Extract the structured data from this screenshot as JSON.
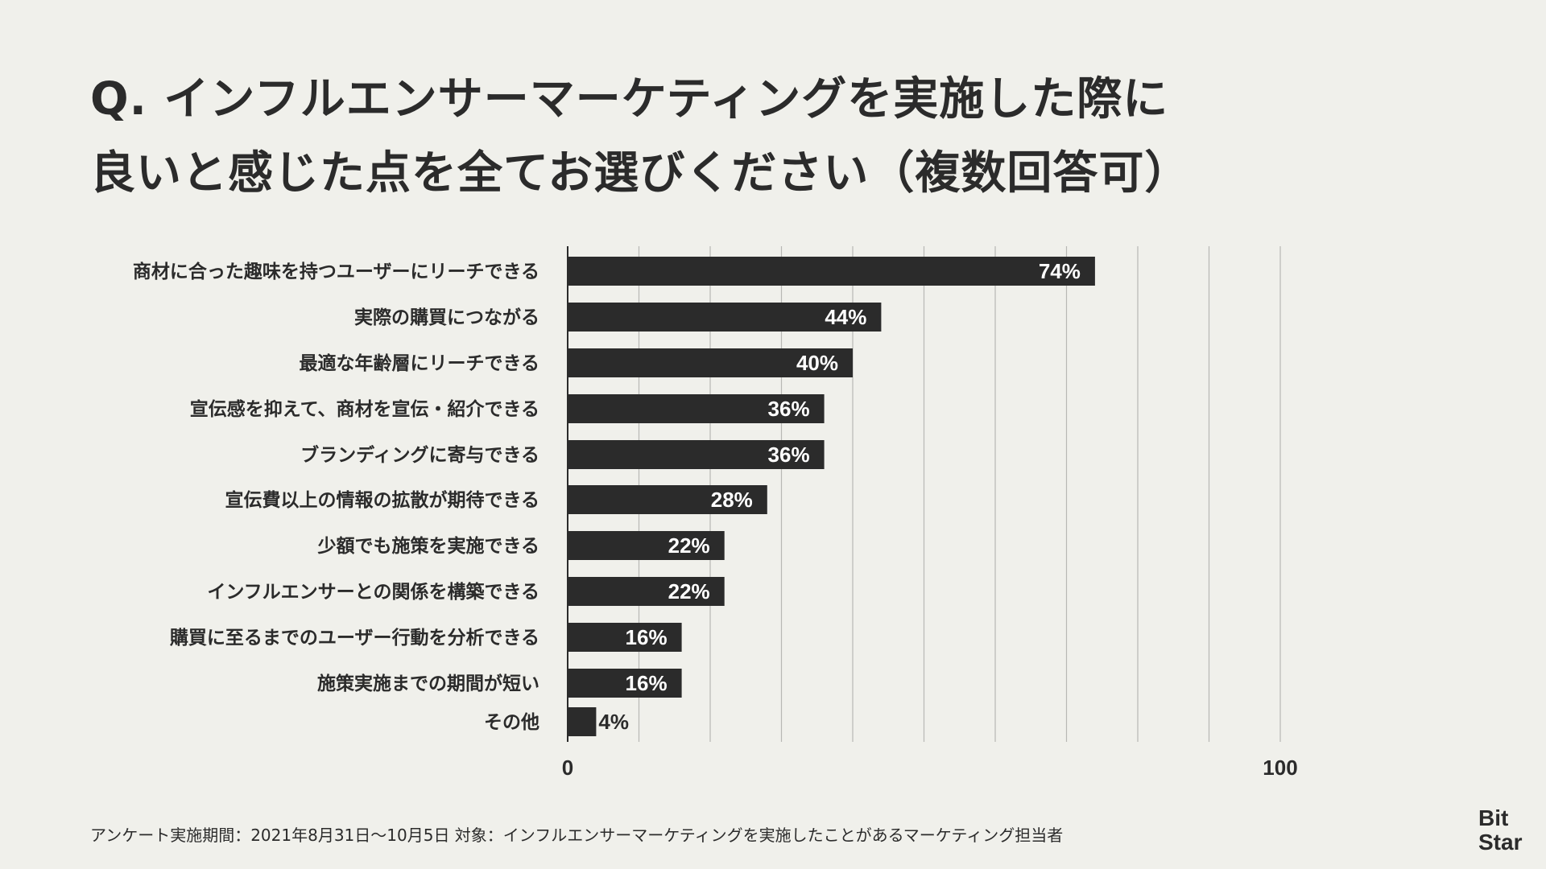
{
  "title": {
    "line1": "Q. インフルエンサーマーケティングを実施した際に",
    "line2": "良いと感じた点を全てお選びください（複数回答可）"
  },
  "chart_data": {
    "type": "bar",
    "orientation": "horizontal",
    "categories": [
      "商材に合った趣味を持つユーザーにリーチできる",
      "実際の購買につながる",
      "最適な年齢層にリーチできる",
      "宣伝感を抑えて、商材を宣伝・紹介できる",
      "ブランディングに寄与できる",
      "宣伝費以上の情報の拡散が期待できる",
      "少額でも施策を実施できる",
      "インフルエンサーとの関係を構築できる",
      "購買に至るまでのユーザー行動を分析できる",
      "施策実施までの期間が短い",
      "その他"
    ],
    "values": [
      74,
      44,
      40,
      36,
      36,
      28,
      22,
      22,
      16,
      16,
      4
    ],
    "value_labels": [
      "74%",
      "44%",
      "40%",
      "36%",
      "36%",
      "28%",
      "22%",
      "22%",
      "16%",
      "16%",
      "4%"
    ],
    "xlim": [
      0,
      100
    ],
    "xticks": [
      "0",
      "100"
    ],
    "grid": true,
    "bar_color": "#2b2b2b",
    "label_color": "#ffffff"
  },
  "footnote": "アンケート実施期間：2021年8月31日〜10月5日 対象：インフルエンサーマーケティングを実施したことがあるマーケティング担当者",
  "logo": {
    "line1": "Bit",
    "line2": "Star"
  },
  "colors": {
    "background": "#f0f0eb",
    "text": "#2b2b2b",
    "grid": "#b8b8b4"
  }
}
